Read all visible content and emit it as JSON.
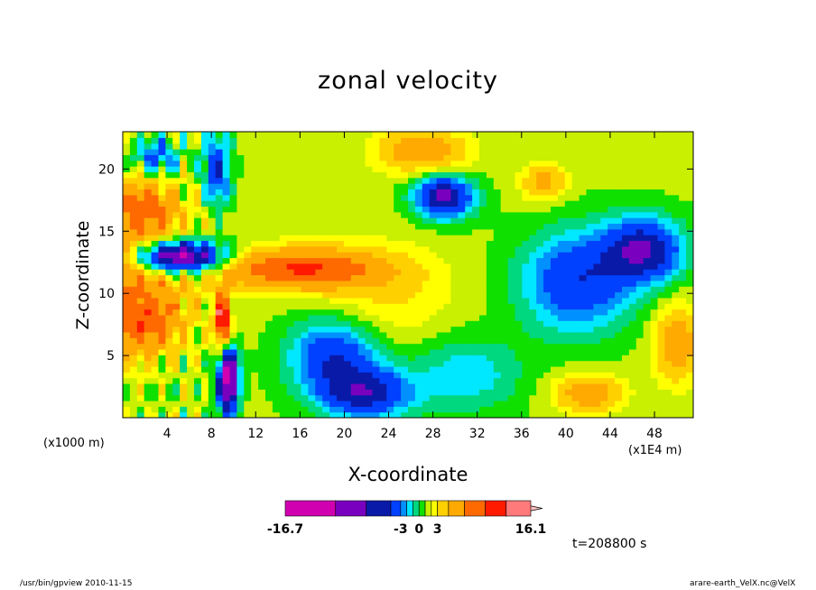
{
  "chart_data": {
    "type": "heatmap",
    "title": "zonal velocity",
    "xlabel": "X-coordinate",
    "ylabel": "Z-coordinate",
    "x_unit": "(x1E4 m)",
    "y_unit": "(x1000 m)",
    "xlim": [
      0,
      51.5
    ],
    "ylim": [
      0,
      23
    ],
    "x_ticks": [
      4,
      8,
      12,
      16,
      20,
      24,
      28,
      32,
      36,
      40,
      44,
      48
    ],
    "y_ticks": [
      5,
      10,
      15,
      20
    ],
    "colorbar": {
      "min": -16.7,
      "max": 16.1,
      "labels": [
        "-16.7",
        "-3",
        "0",
        "3",
        "16.1"
      ],
      "label_values": [
        -16.7,
        -3,
        0,
        3,
        16.1
      ]
    },
    "time_label": "t=208800 s",
    "blobs": [
      {
        "x": 0,
        "z": 11.5,
        "sx": 6,
        "sz": 6,
        "a": 6
      },
      {
        "x": 5,
        "z": 13,
        "sx": 4,
        "sz": 1.3,
        "a": -14
      },
      {
        "x": 2,
        "z": 17,
        "sx": 3,
        "sz": 2.2,
        "a": 5
      },
      {
        "x": 2,
        "z": 7.5,
        "sx": 3,
        "sz": 2,
        "a": 5
      },
      {
        "x": 3,
        "z": 21,
        "sx": 2,
        "sz": 1.5,
        "a": -5
      },
      {
        "x": 9.5,
        "z": 3,
        "sx": 0.9,
        "sz": 2.5,
        "a": -14
      },
      {
        "x": 9,
        "z": 8,
        "sx": 0.6,
        "sz": 2,
        "a": 14
      },
      {
        "x": 8.5,
        "z": 20,
        "sx": 1.2,
        "sz": 3,
        "a": -6
      },
      {
        "x": 16,
        "z": 12,
        "sx": 7,
        "sz": 1.6,
        "a": 9
      },
      {
        "x": 27,
        "z": 21.5,
        "sx": 4,
        "sz": 1.8,
        "a": 5
      },
      {
        "x": 29,
        "z": 17.8,
        "sx": 2.6,
        "sz": 1.7,
        "a": -9
      },
      {
        "x": 38,
        "z": 19,
        "sx": 2,
        "sz": 1.5,
        "a": 4
      },
      {
        "x": 47,
        "z": 13.5,
        "sx": 3.5,
        "sz": 2.5,
        "a": -8
      },
      {
        "x": 41,
        "z": 11,
        "sx": 5,
        "sz": 4,
        "a": -6
      },
      {
        "x": 19,
        "z": 5,
        "sx": 4,
        "sz": 3,
        "a": -6
      },
      {
        "x": 22,
        "z": 2,
        "sx": 4,
        "sz": 2,
        "a": -7
      },
      {
        "x": 31,
        "z": 3.5,
        "sx": 5,
        "sz": 3,
        "a": -3
      },
      {
        "x": 42,
        "z": 2,
        "sx": 3,
        "sz": 1.5,
        "a": 5
      },
      {
        "x": 50,
        "z": 6,
        "sx": 2,
        "sz": 3,
        "a": 5
      },
      {
        "x": 24,
        "z": 10,
        "sx": 6,
        "sz": 4,
        "a": 2
      }
    ]
  },
  "footer": {
    "left": "/usr/bin/gpview   2010-11-15",
    "right": "arare-earth_VelX.nc@VelX"
  }
}
